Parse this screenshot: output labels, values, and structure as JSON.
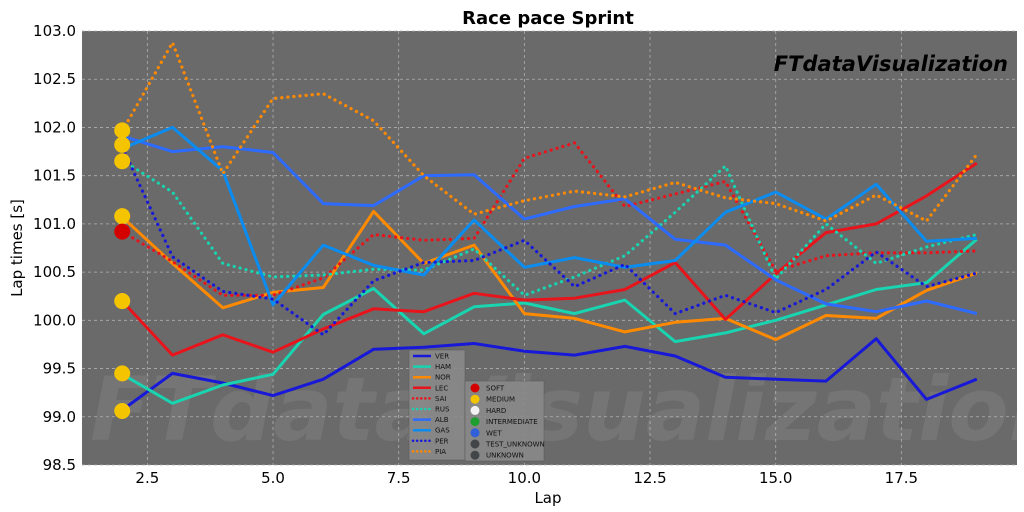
{
  "chart_data": {
    "type": "line",
    "title": "Race pace Sprint",
    "xlabel": "Lap",
    "ylabel": "Lap times [s]",
    "xlim": [
      1.2,
      19.8
    ],
    "ylim": [
      98.5,
      103.0
    ],
    "xticks": [
      "2.5",
      "5.0",
      "7.5",
      "10.0",
      "12.5",
      "15.0",
      "17.5"
    ],
    "yticks": [
      "98.5",
      "99.0",
      "99.5",
      "100.0",
      "100.5",
      "101.0",
      "101.5",
      "102.0",
      "102.5",
      "103.0"
    ],
    "grid": true,
    "watermark_corner": "FTdataVisualization",
    "watermark_background": "FTdataVisualization",
    "background_color": "#6a6a6a",
    "series": [
      {
        "name": "VER",
        "color": "#1818d8",
        "style": "solid",
        "x": [
          2,
          3,
          4,
          5,
          6,
          7,
          8,
          9,
          10,
          11,
          12,
          13,
          14,
          15,
          16,
          17,
          18,
          19
        ],
        "values": [
          99.07,
          99.45,
          99.35,
          99.22,
          99.39,
          99.7,
          99.72,
          99.76,
          99.68,
          99.64,
          99.73,
          99.63,
          99.41,
          99.39,
          99.37,
          99.81,
          99.18,
          99.39
        ]
      },
      {
        "name": "HAM",
        "color": "#18d4b0",
        "style": "solid",
        "x": [
          2,
          3,
          4,
          5,
          6,
          7,
          8,
          9,
          10,
          11,
          12,
          13,
          14,
          15,
          16,
          17,
          18,
          19
        ],
        "values": [
          99.44,
          99.14,
          99.33,
          99.44,
          100.06,
          100.33,
          99.86,
          100.14,
          100.18,
          100.07,
          100.21,
          99.78,
          99.87,
          100.0,
          100.16,
          100.32,
          100.39,
          100.84
        ]
      },
      {
        "name": "NOR",
        "color": "#ff8a00",
        "style": "solid",
        "x": [
          2,
          3,
          4,
          5,
          6,
          7,
          8,
          9,
          10,
          11,
          12,
          13,
          14,
          15,
          16,
          17,
          18,
          19
        ],
        "values": [
          101.07,
          100.59,
          100.13,
          100.29,
          100.34,
          101.13,
          100.59,
          100.78,
          100.07,
          100.02,
          99.88,
          99.98,
          100.02,
          99.8,
          100.05,
          100.02,
          100.31,
          100.49
        ]
      },
      {
        "name": "LEC",
        "color": "#e8141c",
        "style": "solid",
        "x": [
          2,
          3,
          4,
          5,
          6,
          7,
          8,
          9,
          10,
          11,
          12,
          13,
          14,
          15,
          16,
          17,
          18,
          19
        ],
        "values": [
          100.2,
          99.64,
          99.85,
          99.67,
          99.91,
          100.12,
          100.09,
          100.28,
          100.21,
          100.23,
          100.32,
          100.6,
          100.01,
          100.48,
          100.91,
          101.0,
          101.29,
          101.63
        ]
      },
      {
        "name": "SAI",
        "color": "#e8141c",
        "style": "dotted",
        "x": [
          2,
          3,
          4,
          5,
          6,
          7,
          8,
          9,
          10,
          11,
          12,
          13,
          14,
          15,
          16,
          17,
          18,
          19
        ],
        "values": [
          100.92,
          100.61,
          100.26,
          100.26,
          100.44,
          100.89,
          100.83,
          100.85,
          101.68,
          101.84,
          101.18,
          101.31,
          101.44,
          100.51,
          100.67,
          100.7,
          100.7,
          100.72
        ]
      },
      {
        "name": "RUS",
        "color": "#18d4b0",
        "style": "dotted",
        "x": [
          2,
          3,
          4,
          5,
          6,
          7,
          8,
          9,
          10,
          11,
          12,
          13,
          14,
          15,
          16,
          17,
          18,
          19
        ],
        "values": [
          101.66,
          101.33,
          100.59,
          100.45,
          100.47,
          100.53,
          100.52,
          100.74,
          100.26,
          100.45,
          100.67,
          101.12,
          101.6,
          100.43,
          101.0,
          100.59,
          100.76,
          100.89
        ]
      },
      {
        "name": "ALB",
        "color": "#2d6bff",
        "style": "solid",
        "x": [
          2,
          3,
          4,
          5,
          6,
          7,
          8,
          9,
          10,
          11,
          12,
          13,
          14,
          15,
          16,
          17,
          18,
          19
        ],
        "values": [
          101.91,
          101.75,
          101.8,
          101.74,
          101.21,
          101.19,
          101.5,
          101.51,
          101.05,
          101.18,
          101.26,
          100.84,
          100.78,
          100.42,
          100.17,
          100.09,
          100.2,
          100.07
        ]
      },
      {
        "name": "GAS",
        "color": "#0a8cf0",
        "style": "solid",
        "x": [
          2,
          3,
          4,
          5,
          6,
          7,
          8,
          9,
          10,
          11,
          12,
          13,
          14,
          15,
          16,
          17,
          18,
          19
        ],
        "values": [
          101.78,
          102.0,
          101.55,
          100.16,
          100.78,
          100.57,
          100.47,
          101.04,
          100.55,
          100.65,
          100.55,
          100.62,
          101.12,
          101.33,
          101.05,
          101.41,
          100.82,
          100.85
        ]
      },
      {
        "name": "PER",
        "color": "#1818d8",
        "style": "dotted",
        "x": [
          2,
          3,
          4,
          5,
          6,
          7,
          8,
          9,
          10,
          11,
          12,
          13,
          14,
          15,
          16,
          17,
          18,
          19
        ],
        "values": [
          101.8,
          100.66,
          100.3,
          100.22,
          99.85,
          100.41,
          100.6,
          100.62,
          100.83,
          100.35,
          100.58,
          100.07,
          100.26,
          100.08,
          100.32,
          100.71,
          100.35,
          100.49
        ]
      },
      {
        "name": "PIA",
        "color": "#ff8a00",
        "style": "dotted",
        "x": [
          2,
          3,
          4,
          5,
          6,
          7,
          8,
          9,
          10,
          11,
          12,
          13,
          14,
          15,
          16,
          17,
          18,
          19
        ],
        "values": [
          101.96,
          102.88,
          101.52,
          102.3,
          102.35,
          102.07,
          101.5,
          101.1,
          101.24,
          101.34,
          101.28,
          101.43,
          101.27,
          101.21,
          101.03,
          101.3,
          101.03,
          101.72
        ]
      }
    ],
    "start_markers": [
      {
        "x": 2,
        "y": 101.97,
        "compound": "MEDIUM"
      },
      {
        "x": 2,
        "y": 101.82,
        "compound": "MEDIUM"
      },
      {
        "x": 2,
        "y": 101.65,
        "compound": "MEDIUM"
      },
      {
        "x": 2,
        "y": 101.08,
        "compound": "MEDIUM"
      },
      {
        "x": 2,
        "y": 100.92,
        "compound": "SOFT"
      },
      {
        "x": 2,
        "y": 100.2,
        "compound": "MEDIUM"
      },
      {
        "x": 2,
        "y": 99.45,
        "compound": "MEDIUM"
      },
      {
        "x": 2,
        "y": 99.06,
        "compound": "MEDIUM"
      }
    ],
    "compound_legend": [
      {
        "name": "SOFT",
        "color": "#d40000"
      },
      {
        "name": "MEDIUM",
        "color": "#f5c400"
      },
      {
        "name": "HARD",
        "color": "#f2f2f2"
      },
      {
        "name": "INTERMEDIATE",
        "color": "#1e9e2e"
      },
      {
        "name": "WET",
        "color": "#3060d8"
      },
      {
        "name": "TEST_UNKNOWN",
        "color": "#434649"
      },
      {
        "name": "UNKNOWN",
        "color": "#434649"
      }
    ]
  }
}
